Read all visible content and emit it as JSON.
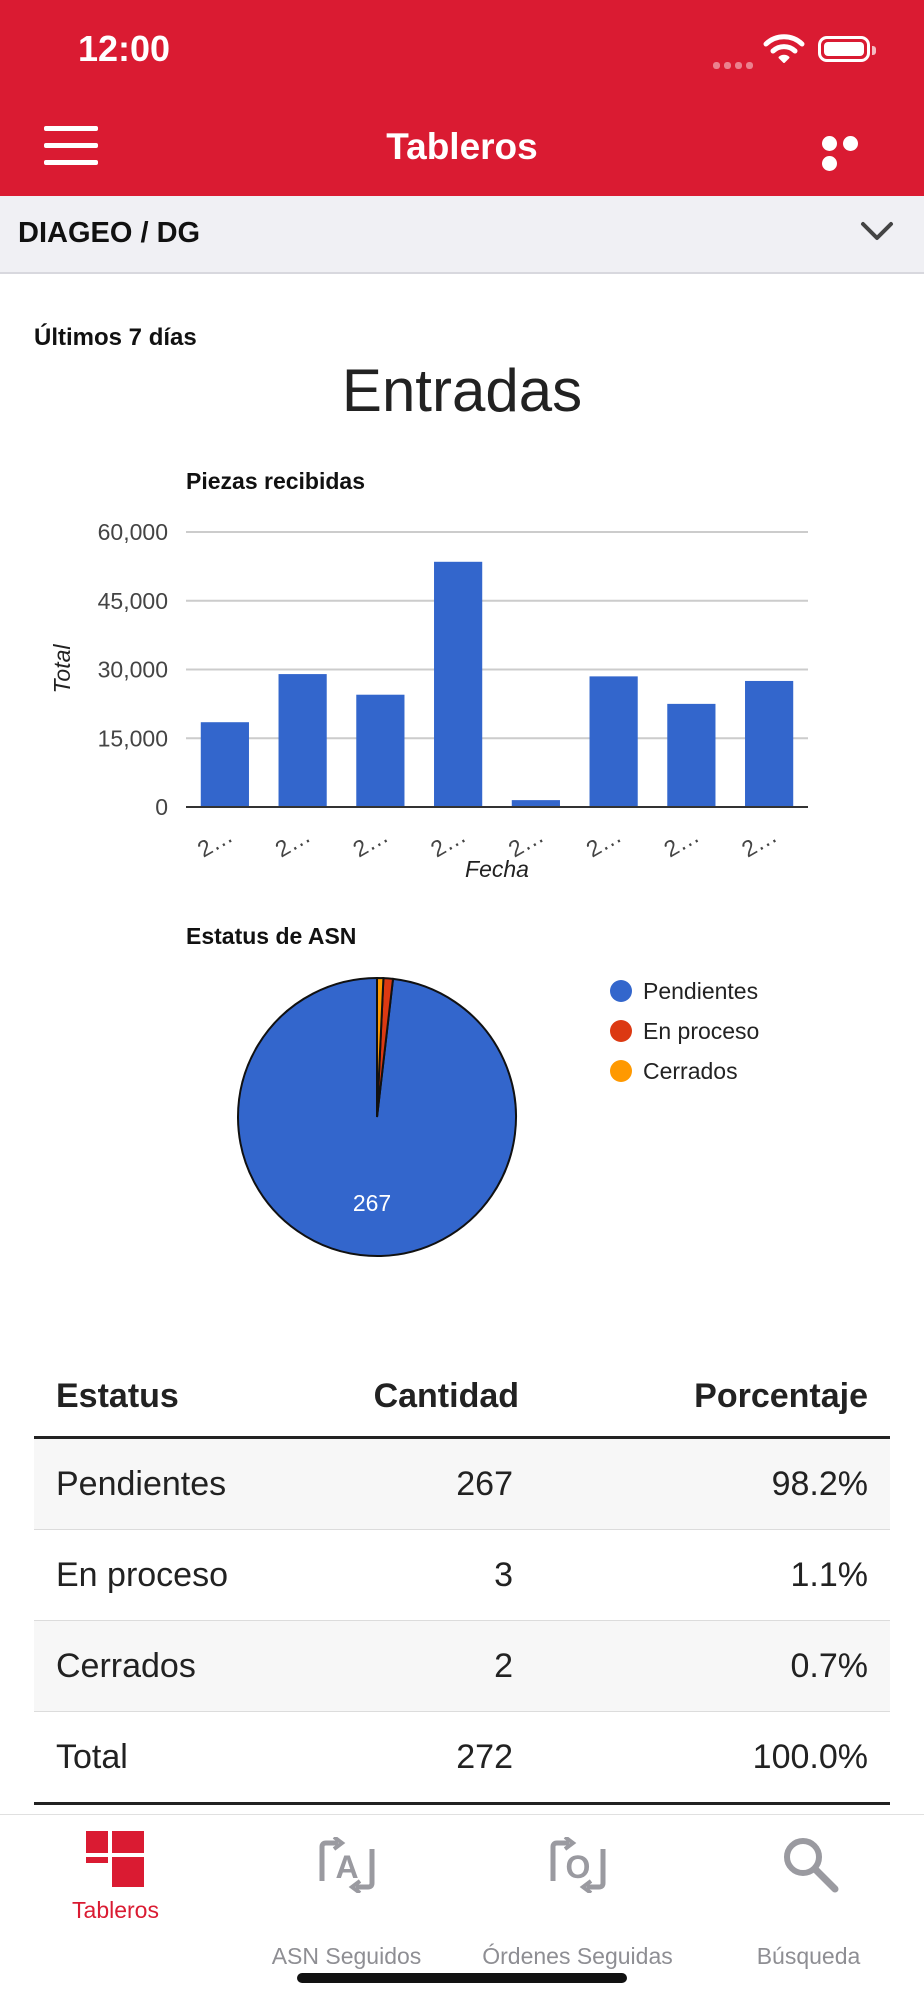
{
  "status_bar": {
    "time": "12:00"
  },
  "header": {
    "title": "Tableros"
  },
  "account_selector": {
    "label": "DIAGEO / DG"
  },
  "dashboard": {
    "range_label": "Últimos 7 días",
    "section_title": "Entradas"
  },
  "chart_data": [
    {
      "type": "bar",
      "title": "Piezas recibidas",
      "xlabel": "Fecha",
      "ylabel": "Total",
      "categories": [
        "2…",
        "2…",
        "2…",
        "2…",
        "2…",
        "2…",
        "2…",
        "2…"
      ],
      "values": [
        18500,
        29000,
        24500,
        53500,
        1500,
        28500,
        22500,
        27500
      ],
      "ylim": [
        0,
        60000
      ],
      "yticks": [
        0,
        15000,
        30000,
        45000,
        60000
      ],
      "ytick_labels": [
        "0",
        "15,000",
        "30,000",
        "45,000",
        "60,000"
      ],
      "color": "#3366cc",
      "grid": true
    },
    {
      "type": "pie",
      "title": "Estatus de ASN",
      "labels": [
        "Pendientes",
        "En proceso",
        "Cerrados"
      ],
      "values": [
        267,
        3,
        2
      ],
      "colors": [
        "#3366cc",
        "#dc3912",
        "#ff9900"
      ],
      "slice_labels": [
        "267",
        "",
        ""
      ],
      "legend": "right"
    }
  ],
  "table": {
    "headers": [
      "Estatus",
      "Cantidad",
      "Porcentaje"
    ],
    "rows": [
      [
        "Pendientes",
        "267",
        "98.2%"
      ],
      [
        "En proceso",
        "3",
        "1.1%"
      ],
      [
        "Cerrados",
        "2",
        "0.7%"
      ],
      [
        "Total",
        "272",
        "100.0%"
      ]
    ]
  },
  "tabbar": {
    "active_color": "#da1b32",
    "inactive_color": "#8e8e93",
    "items": [
      {
        "label": "Tableros",
        "icon": "dashboard-icon",
        "active": true
      },
      {
        "label": "ASN Seguidos",
        "icon": "asn-followed-icon",
        "active": false
      },
      {
        "label": "Órdenes Seguidas",
        "icon": "orders-followed-icon",
        "active": false
      },
      {
        "label": "Búsqueda",
        "icon": "search-icon",
        "active": false
      }
    ]
  }
}
